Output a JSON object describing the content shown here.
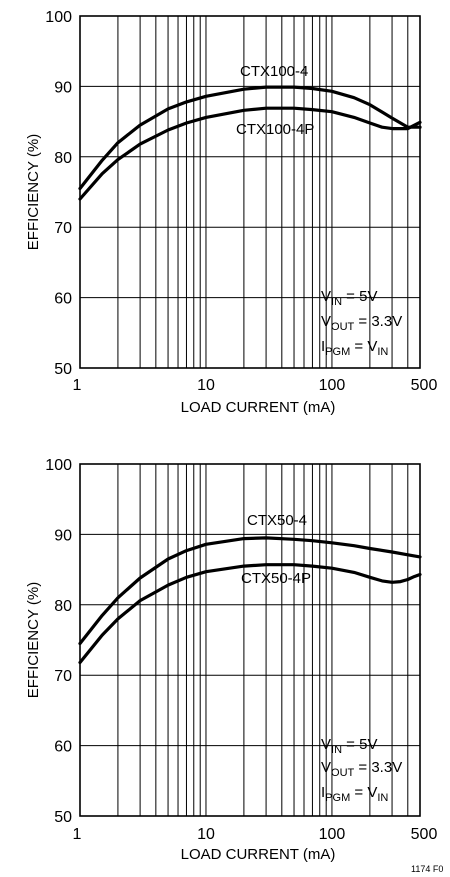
{
  "chart_data": [
    {
      "type": "line",
      "xscale": "log",
      "xlim": [
        1,
        500
      ],
      "ylim": [
        50,
        100
      ],
      "xlabel": "LOAD CURRENT (mA)",
      "ylabel": "EFFICIENCY (%)",
      "xticks": [
        "1",
        "10",
        "100",
        "500"
      ],
      "yticks": [
        "50",
        "60",
        "70",
        "80",
        "90",
        "100"
      ],
      "grid": true,
      "series": [
        {
          "name": "CTX100-4",
          "x": [
            1,
            1.5,
            2,
            3,
            5,
            7,
            10,
            20,
            30,
            50,
            70,
            100,
            150,
            200,
            300,
            400,
            500
          ],
          "y": [
            75.5,
            79.5,
            82,
            84.5,
            86.8,
            87.8,
            88.6,
            89.6,
            89.9,
            89.9,
            89.7,
            89.3,
            88.4,
            87.4,
            85.5,
            84.2,
            84.2
          ]
        },
        {
          "name": "CTX100-4P",
          "x": [
            1,
            1.5,
            2,
            3,
            5,
            7,
            10,
            20,
            30,
            50,
            70,
            100,
            150,
            200,
            250,
            300,
            400,
            500
          ],
          "y": [
            74,
            77.6,
            79.6,
            81.8,
            83.8,
            84.8,
            85.6,
            86.6,
            86.9,
            86.9,
            86.7,
            86.4,
            85.6,
            84.8,
            84.2,
            84,
            84,
            84.9
          ]
        }
      ],
      "conditions": {
        "vin": {
          "main": "V",
          "sub": "IN",
          "rest": " = 5V"
        },
        "vout": {
          "main": "V",
          "sub": "OUT",
          "rest": " = 3.3V"
        },
        "ipgm": {
          "main": "I",
          "sub": "PGM",
          "rest": " = V",
          "sub2": "IN"
        }
      }
    },
    {
      "type": "line",
      "xscale": "log",
      "xlim": [
        1,
        500
      ],
      "ylim": [
        50,
        100
      ],
      "xlabel": "LOAD CURRENT (mA)",
      "ylabel": "EFFICIENCY (%)",
      "xticks": [
        "1",
        "10",
        "100",
        "500"
      ],
      "yticks": [
        "50",
        "60",
        "70",
        "80",
        "90",
        "100"
      ],
      "grid": true,
      "series": [
        {
          "name": "CTX50-4",
          "x": [
            1,
            1.5,
            2,
            3,
            5,
            7,
            10,
            20,
            30,
            50,
            70,
            100,
            150,
            200,
            300,
            400,
            500
          ],
          "y": [
            74.5,
            78.5,
            81,
            83.8,
            86.5,
            87.7,
            88.6,
            89.4,
            89.5,
            89.3,
            89.1,
            88.8,
            88.4,
            88,
            87.5,
            87.1,
            86.8
          ]
        },
        {
          "name": "CTX50-4P",
          "x": [
            1,
            1.5,
            2,
            3,
            5,
            7,
            10,
            20,
            30,
            50,
            70,
            100,
            150,
            200,
            250,
            300,
            350,
            400,
            450,
            500
          ],
          "y": [
            71.8,
            75.7,
            78,
            80.6,
            82.8,
            83.9,
            84.7,
            85.5,
            85.7,
            85.7,
            85.5,
            85.2,
            84.6,
            83.9,
            83.4,
            83.2,
            83.3,
            83.6,
            84,
            84.3
          ]
        }
      ],
      "conditions": {
        "vin": {
          "main": "V",
          "sub": "IN",
          "rest": " = 5V"
        },
        "vout": {
          "main": "V",
          "sub": "OUT",
          "rest": " = 3.3V"
        },
        "ipgm": {
          "main": "I",
          "sub": "PGM",
          "rest": " = V",
          "sub2": "IN"
        }
      }
    }
  ],
  "footnote": "1174 F0"
}
